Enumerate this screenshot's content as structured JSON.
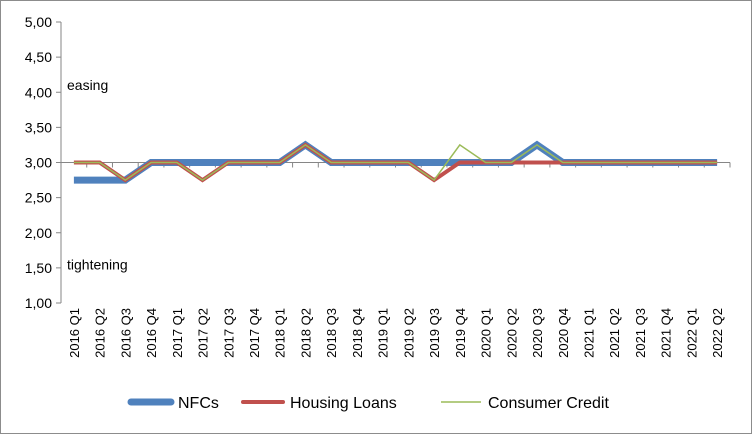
{
  "chart_data": {
    "type": "line",
    "title": "",
    "xlabel": "",
    "ylabel": "",
    "ylim": [
      1.0,
      5.0
    ],
    "yticks": [
      "1,00",
      "1,50",
      "2,00",
      "2,50",
      "3,00",
      "3,50",
      "4,00",
      "4,50",
      "5,00"
    ],
    "categories": [
      "2016 Q1",
      "2016 Q2",
      "2016 Q3",
      "2016 Q4",
      "2017 Q1",
      "2017 Q2",
      "2017 Q3",
      "2017 Q4",
      "2018 Q1",
      "2018 Q2",
      "2018 Q3",
      "2018 Q4",
      "2019 Q1",
      "2019 Q2",
      "2019 Q3",
      "2019 Q4",
      "2020 Q1",
      "2020 Q2",
      "2020 Q3",
      "2020 Q4",
      "2021 Q1",
      "2021 Q2",
      "2021 Q3",
      "2021 Q4",
      "2022 Q1",
      "2022 Q2"
    ],
    "series": [
      {
        "name": "NFCs",
        "color": "#4f81bd",
        "values": [
          2.75,
          2.75,
          2.75,
          3.0,
          3.0,
          3.0,
          3.0,
          3.0,
          3.0,
          3.25,
          3.0,
          3.0,
          3.0,
          3.0,
          3.0,
          3.0,
          3.0,
          3.0,
          3.25,
          3.0,
          3.0,
          3.0,
          3.0,
          3.0,
          3.0,
          3.0
        ]
      },
      {
        "name": "Housing Loans",
        "color": "#c0504d",
        "values": [
          3.0,
          3.0,
          2.75,
          3.0,
          3.0,
          2.75,
          3.0,
          3.0,
          3.0,
          3.25,
          3.0,
          3.0,
          3.0,
          3.0,
          2.75,
          3.0,
          3.0,
          3.0,
          3.0,
          3.0,
          3.0,
          3.0,
          3.0,
          3.0,
          3.0,
          3.0
        ]
      },
      {
        "name": "Consumer Credit",
        "color": "#9bbb59",
        "values": [
          3.0,
          3.0,
          2.75,
          3.0,
          3.0,
          2.75,
          3.0,
          3.0,
          3.0,
          3.25,
          3.0,
          3.0,
          3.0,
          3.0,
          2.75,
          3.25,
          3.0,
          3.0,
          3.25,
          3.0,
          3.0,
          3.0,
          3.0,
          3.0,
          3.0,
          3.0
        ]
      }
    ],
    "annotations": [
      {
        "text": "easing",
        "y": 4.1
      },
      {
        "text": "tightening",
        "y": 1.55
      }
    ],
    "grid": false,
    "legend_position": "bottom"
  }
}
